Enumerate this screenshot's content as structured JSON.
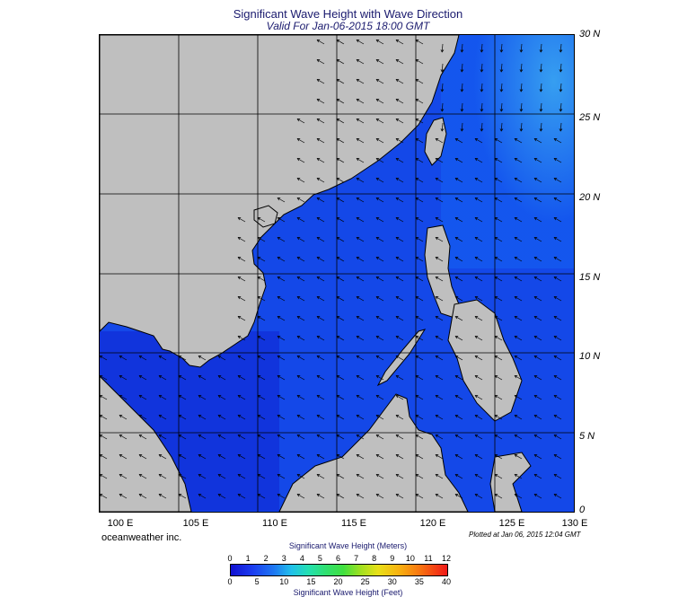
{
  "title": "Significant Wave Height with Wave Direction",
  "subtitle": "Valid For Jan-06-2015 18:00 GMT",
  "lat_labels": [
    "30 N",
    "25 N",
    "20 N",
    "15 N",
    "10 N",
    "5 N",
    "0"
  ],
  "lon_labels": [
    "100 E",
    "105 E",
    "110 E",
    "115 E",
    "120 E",
    "125 E",
    "130 E"
  ],
  "credit": "oceanweather inc.",
  "plotted": "Plotted at Jan 06, 2015 12:04 GMT",
  "colorbar": {
    "title_top": "Significant Wave Height (Meters)",
    "title_bottom": "Significant Wave Height (Feet)",
    "meters_ticks": [
      "0",
      "1",
      "2",
      "3",
      "4",
      "5",
      "6",
      "7",
      "8",
      "9",
      "10",
      "11",
      "12"
    ],
    "feet_ticks": [
      "0",
      "5",
      "10",
      "15",
      "20",
      "25",
      "30",
      "35",
      "40"
    ]
  },
  "colors": {
    "land": "#bfbfbf",
    "sea_low": "#1020d8",
    "sea_high": "#38b8f0"
  }
}
